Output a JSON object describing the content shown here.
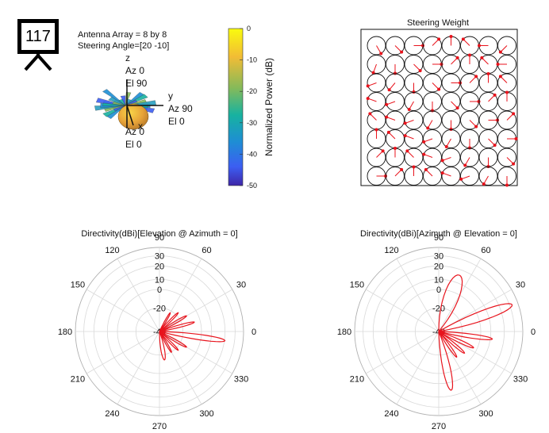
{
  "badge": {
    "number": "117",
    "icon": "presentation-board-icon"
  },
  "header": {
    "array_text": "Antenna Array = 8 by 8",
    "steering_text": "Steering Angle=[20 -10]"
  },
  "pattern3d": {
    "z_axis": "z",
    "z_az": "Az 0",
    "z_el": "El 90",
    "y_axis": "y",
    "y_az": "Az 90",
    "y_el": "El 0",
    "x_axis": "x",
    "x_az": "Az 0",
    "x_el": "El 0"
  },
  "colorbar": {
    "label": "Normalized Power (dB)",
    "ticks": [
      "0",
      "-10",
      "-20",
      "-30",
      "-40",
      "-50"
    ],
    "range": [
      -50,
      0
    ],
    "colormap": "parula"
  },
  "chart_data": [
    {
      "type": "heatmap",
      "title": "Steering Weight",
      "grid": [
        8,
        8
      ],
      "angles_deg": [
        [
          300,
          315,
          0,
          45,
          90,
          135,
          180,
          225
        ],
        [
          250,
          270,
          315,
          0,
          45,
          90,
          135,
          180
        ],
        [
          200,
          230,
          270,
          315,
          0,
          45,
          90,
          135
        ],
        [
          160,
          200,
          240,
          270,
          315,
          0,
          45,
          90
        ],
        [
          135,
          160,
          200,
          240,
          270,
          315,
          0,
          45
        ],
        [
          90,
          135,
          160,
          200,
          240,
          270,
          315,
          0
        ],
        [
          45,
          90,
          135,
          160,
          200,
          240,
          270,
          315
        ],
        [
          0,
          45,
          90,
          135,
          160,
          200,
          240,
          270
        ]
      ]
    },
    {
      "type": "line",
      "title": "Directivity(dBi)[Elevation @ Azimuth = 0]",
      "polar": true,
      "r_ticks": [
        "-40",
        "-20",
        "0",
        "10",
        "20",
        "30"
      ],
      "angle_ticks": [
        "0",
        "30",
        "60",
        "90",
        "120",
        "150",
        "180",
        "210",
        "240",
        "270",
        "300",
        "330"
      ],
      "series": [
        {
          "lobes": [
            {
              "center_deg": 60,
              "width_deg": 11,
              "peak_db": -22
            },
            {
              "center_deg": 45,
              "width_deg": 11,
              "peak_db": -18
            },
            {
              "center_deg": 30,
              "width_deg": 11,
              "peak_db": -14
            },
            {
              "center_deg": 15,
              "width_deg": 11,
              "peak_db": -10
            },
            {
              "center_deg": -8,
              "width_deg": 13,
              "peak_db": 15
            },
            {
              "center_deg": -30,
              "width_deg": 11,
              "peak_db": -14
            },
            {
              "center_deg": -45,
              "width_deg": 11,
              "peak_db": -18
            },
            {
              "center_deg": -60,
              "width_deg": 11,
              "peak_db": -20
            },
            {
              "center_deg": -80,
              "width_deg": 20,
              "peak_db": -16
            }
          ]
        }
      ]
    },
    {
      "type": "line",
      "title": "Directivity(dBi)[Azimuth @ Elevation = 0]",
      "polar": true,
      "r_ticks": [
        "-40",
        "-20",
        "0",
        "10",
        "20",
        "30"
      ],
      "angle_ticks": [
        "0",
        "30",
        "60",
        "90",
        "120",
        "150",
        "180",
        "210",
        "240",
        "270",
        "300",
        "330"
      ],
      "series": [
        {
          "lobes": [
            {
              "center_deg": 70,
              "width_deg": 40,
              "peak_db": 10
            },
            {
              "center_deg": 20,
              "width_deg": 20,
              "peak_db": 25
            },
            {
              "center_deg": -8,
              "width_deg": 12,
              "peak_db": 5
            },
            {
              "center_deg": -25,
              "width_deg": 12,
              "peak_db": -8
            },
            {
              "center_deg": -40,
              "width_deg": 12,
              "peak_db": -12
            },
            {
              "center_deg": -55,
              "width_deg": 12,
              "peak_db": -14
            },
            {
              "center_deg": -78,
              "width_deg": 20,
              "peak_db": 10
            }
          ]
        }
      ]
    }
  ],
  "colors": {
    "lobe": "#e8131c",
    "grid": "#d9d9d9",
    "text": "#111111"
  }
}
